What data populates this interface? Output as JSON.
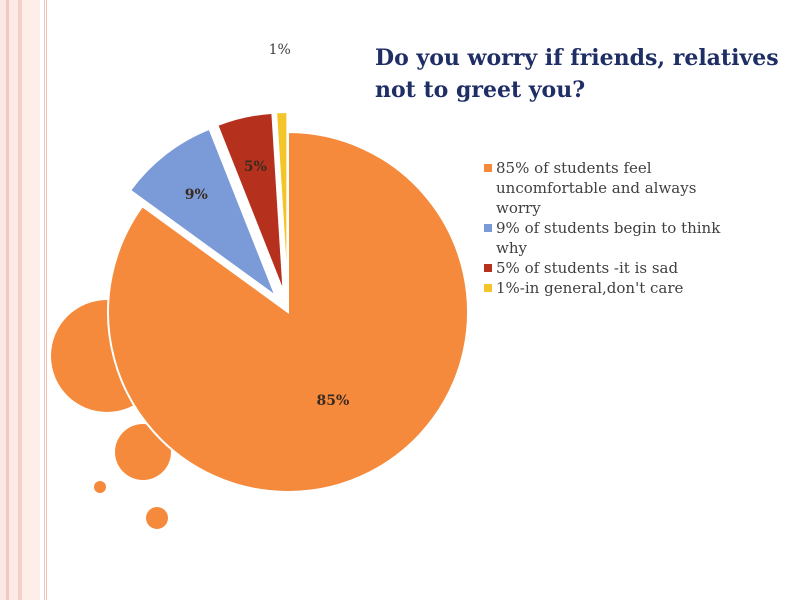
{
  "slide": {
    "title": "Do you worry if friends, relatives not to greet you?"
  },
  "chart_data": {
    "type": "pie",
    "title": "Do you worry if friends, relatives not to greet you?",
    "exploded": true,
    "legend_position": "right",
    "slices": [
      {
        "value": 85,
        "label": "85%",
        "legend": "85% of students feel uncomfortable and always worry",
        "color": "#f58a3c"
      },
      {
        "value": 9,
        "label": "9%",
        "legend": "9% of students begin to think why",
        "color": "#7b9bd8"
      },
      {
        "value": 5,
        "label": "5%",
        "legend": "5% of students -it is sad",
        "color": "#b5311e"
      },
      {
        "value": 1,
        "label": "1%",
        "legend": "1%-in general,don't care",
        "color": "#f3c529"
      }
    ]
  },
  "colors": {
    "title": "#1f2f66",
    "decor_circles": "#f58a3c",
    "side_stripes": "#f4c8bf"
  }
}
